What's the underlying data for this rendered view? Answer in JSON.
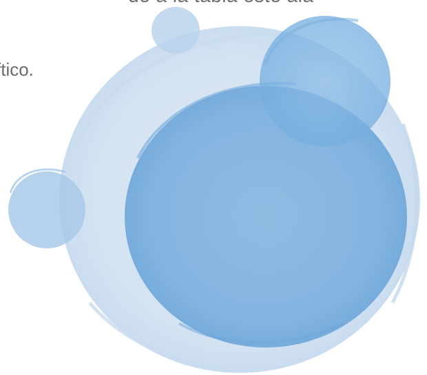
{
  "slide": {
    "line_top": "de a la tabla este ala",
    "line_second": "ftico."
  },
  "decoration": {
    "description_colors": {
      "pale_blue": "#d6e4f2",
      "light_blue": "#a9c9e9",
      "mid_blue": "#7fb3df",
      "deep_blue": "#5b9bd5"
    }
  }
}
